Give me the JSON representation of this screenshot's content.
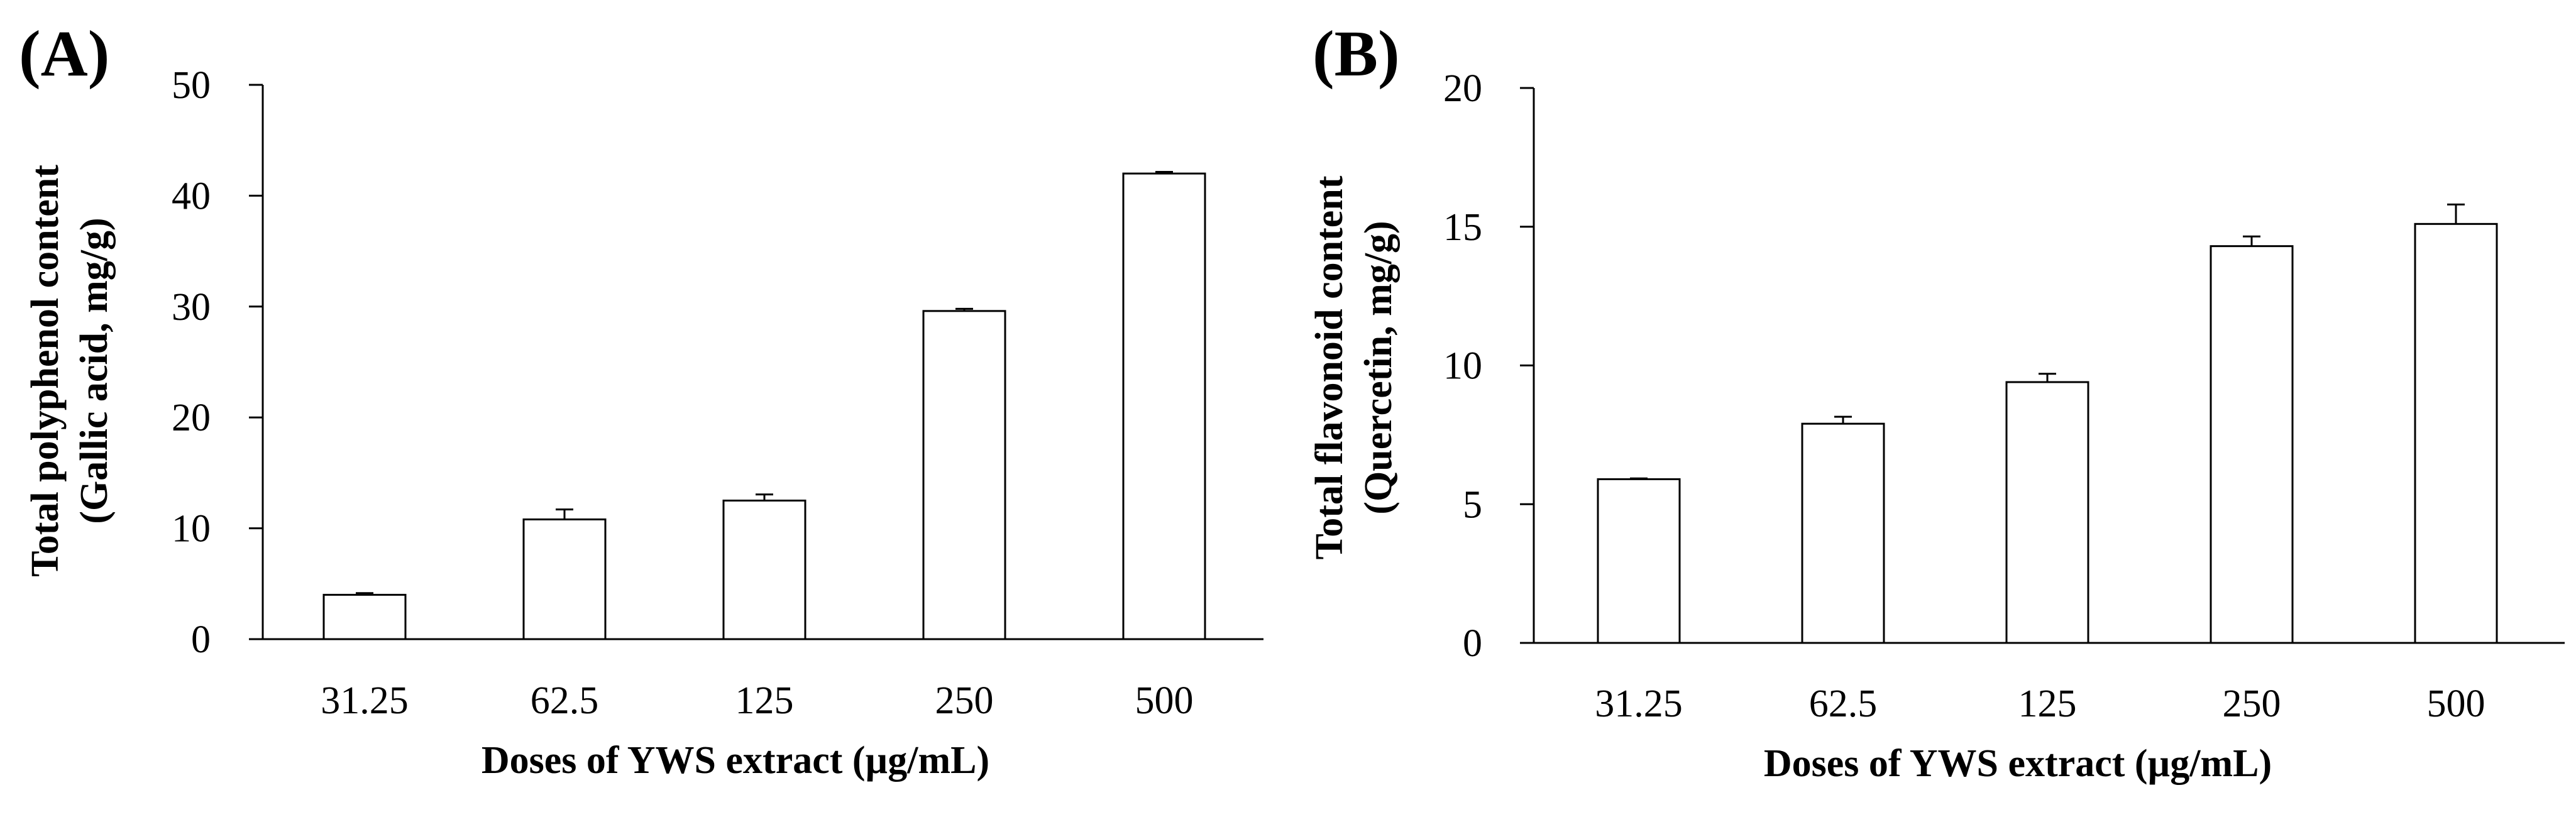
{
  "chart_data": [
    {
      "type": "bar",
      "panel_label": "(A)",
      "categories": [
        "31.25",
        "62.5",
        "125",
        "250",
        "500"
      ],
      "values": [
        4,
        10.8,
        12.5,
        29.6,
        42
      ],
      "errors": [
        0.15,
        0.9,
        0.55,
        0.2,
        0.15
      ],
      "ylabel_line1": "Total polyphenol content",
      "ylabel_line2": "(Gallic acid, mg/g)",
      "xlabel": "Doses of YWS extract (µg/mL)",
      "ylim": [
        0,
        50
      ],
      "yticks": [
        "0",
        "10",
        "20",
        "30",
        "40",
        "50"
      ],
      "grid": false,
      "legend": "none",
      "bar_fill": "#ffffff",
      "bar_stroke": "#000000"
    },
    {
      "type": "bar",
      "panel_label": "(B)",
      "categories": [
        "31.25",
        "62.5",
        "125",
        "250",
        "500"
      ],
      "values": [
        5.9,
        7.9,
        9.4,
        14.3,
        15.1
      ],
      "errors": [
        0.03,
        0.25,
        0.3,
        0.35,
        0.7
      ],
      "ylabel_line1": "Total flavonoid content",
      "ylabel_line2": "(Quercetin, mg/g)",
      "xlabel": "Doses of YWS extract (µg/mL)",
      "ylim": [
        0,
        20
      ],
      "yticks": [
        "0",
        "5",
        "10",
        "15",
        "20"
      ],
      "grid": false,
      "legend": "none",
      "bar_fill": "#ffffff",
      "bar_stroke": "#000000"
    }
  ]
}
